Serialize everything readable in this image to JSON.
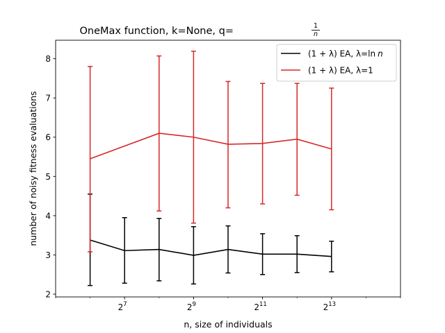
{
  "chart_data": {
    "type": "line",
    "title": "OneMax function, k=None, q=",
    "title_fraction": {
      "numerator": "1",
      "denominator": "n"
    },
    "xlabel": "n, size of individuals",
    "ylabel": "number of noisy fitness evaluations",
    "x_scale": "log2",
    "xlim": [
      32,
      32768
    ],
    "ylim": [
      1.93,
      8.47
    ],
    "x_ticks": [
      {
        "value": 128,
        "base": "2",
        "exp": "7"
      },
      {
        "value": 512,
        "base": "2",
        "exp": "9"
      },
      {
        "value": 2048,
        "base": "2",
        "exp": "11"
      },
      {
        "value": 8192,
        "base": "2",
        "exp": "13"
      }
    ],
    "y_ticks": [
      2,
      3,
      4,
      5,
      6,
      7,
      8
    ],
    "y_tick_labels": [
      "2",
      "3",
      "4",
      "5",
      "6",
      "7",
      "8"
    ],
    "x": [
      64,
      256,
      512,
      1024,
      2048,
      4096,
      8192
    ],
    "x_for_series_2": [
      64,
      256,
      512,
      1024,
      2048,
      4096,
      8192
    ],
    "series": [
      {
        "name": "(1 + λ) EA, λ=ln n",
        "legend_parts": {
          "prefix": "(1 + λ) EA, λ=ln",
          "italic": "n"
        },
        "color": "#000000",
        "x": [
          64,
          128,
          256,
          512,
          1024,
          2048,
          4096,
          8192
        ],
        "values": [
          3.38,
          3.11,
          3.14,
          2.99,
          3.14,
          3.02,
          3.02,
          2.96
        ],
        "err_low": [
          2.22,
          2.28,
          2.34,
          2.26,
          2.54,
          2.5,
          2.55,
          2.57
        ],
        "err_high": [
          4.55,
          3.95,
          3.93,
          3.72,
          3.74,
          3.54,
          3.49,
          3.35
        ]
      },
      {
        "name": "(1 + λ) EA, λ=1",
        "legend_parts": {
          "prefix": "(1 + λ) EA, λ=1",
          "italic": ""
        },
        "color": "#d62728",
        "x": [
          64,
          256,
          512,
          1024,
          2048,
          4096,
          8192
        ],
        "values": [
          5.45,
          6.1,
          6.0,
          5.82,
          5.84,
          5.95,
          5.7
        ],
        "err_low": [
          3.08,
          4.12,
          3.81,
          4.2,
          4.3,
          4.52,
          4.15
        ],
        "err_high": [
          7.8,
          8.07,
          8.19,
          7.42,
          7.37,
          7.37,
          7.25
        ]
      }
    ],
    "legend_position": "top-right",
    "grid": false
  }
}
